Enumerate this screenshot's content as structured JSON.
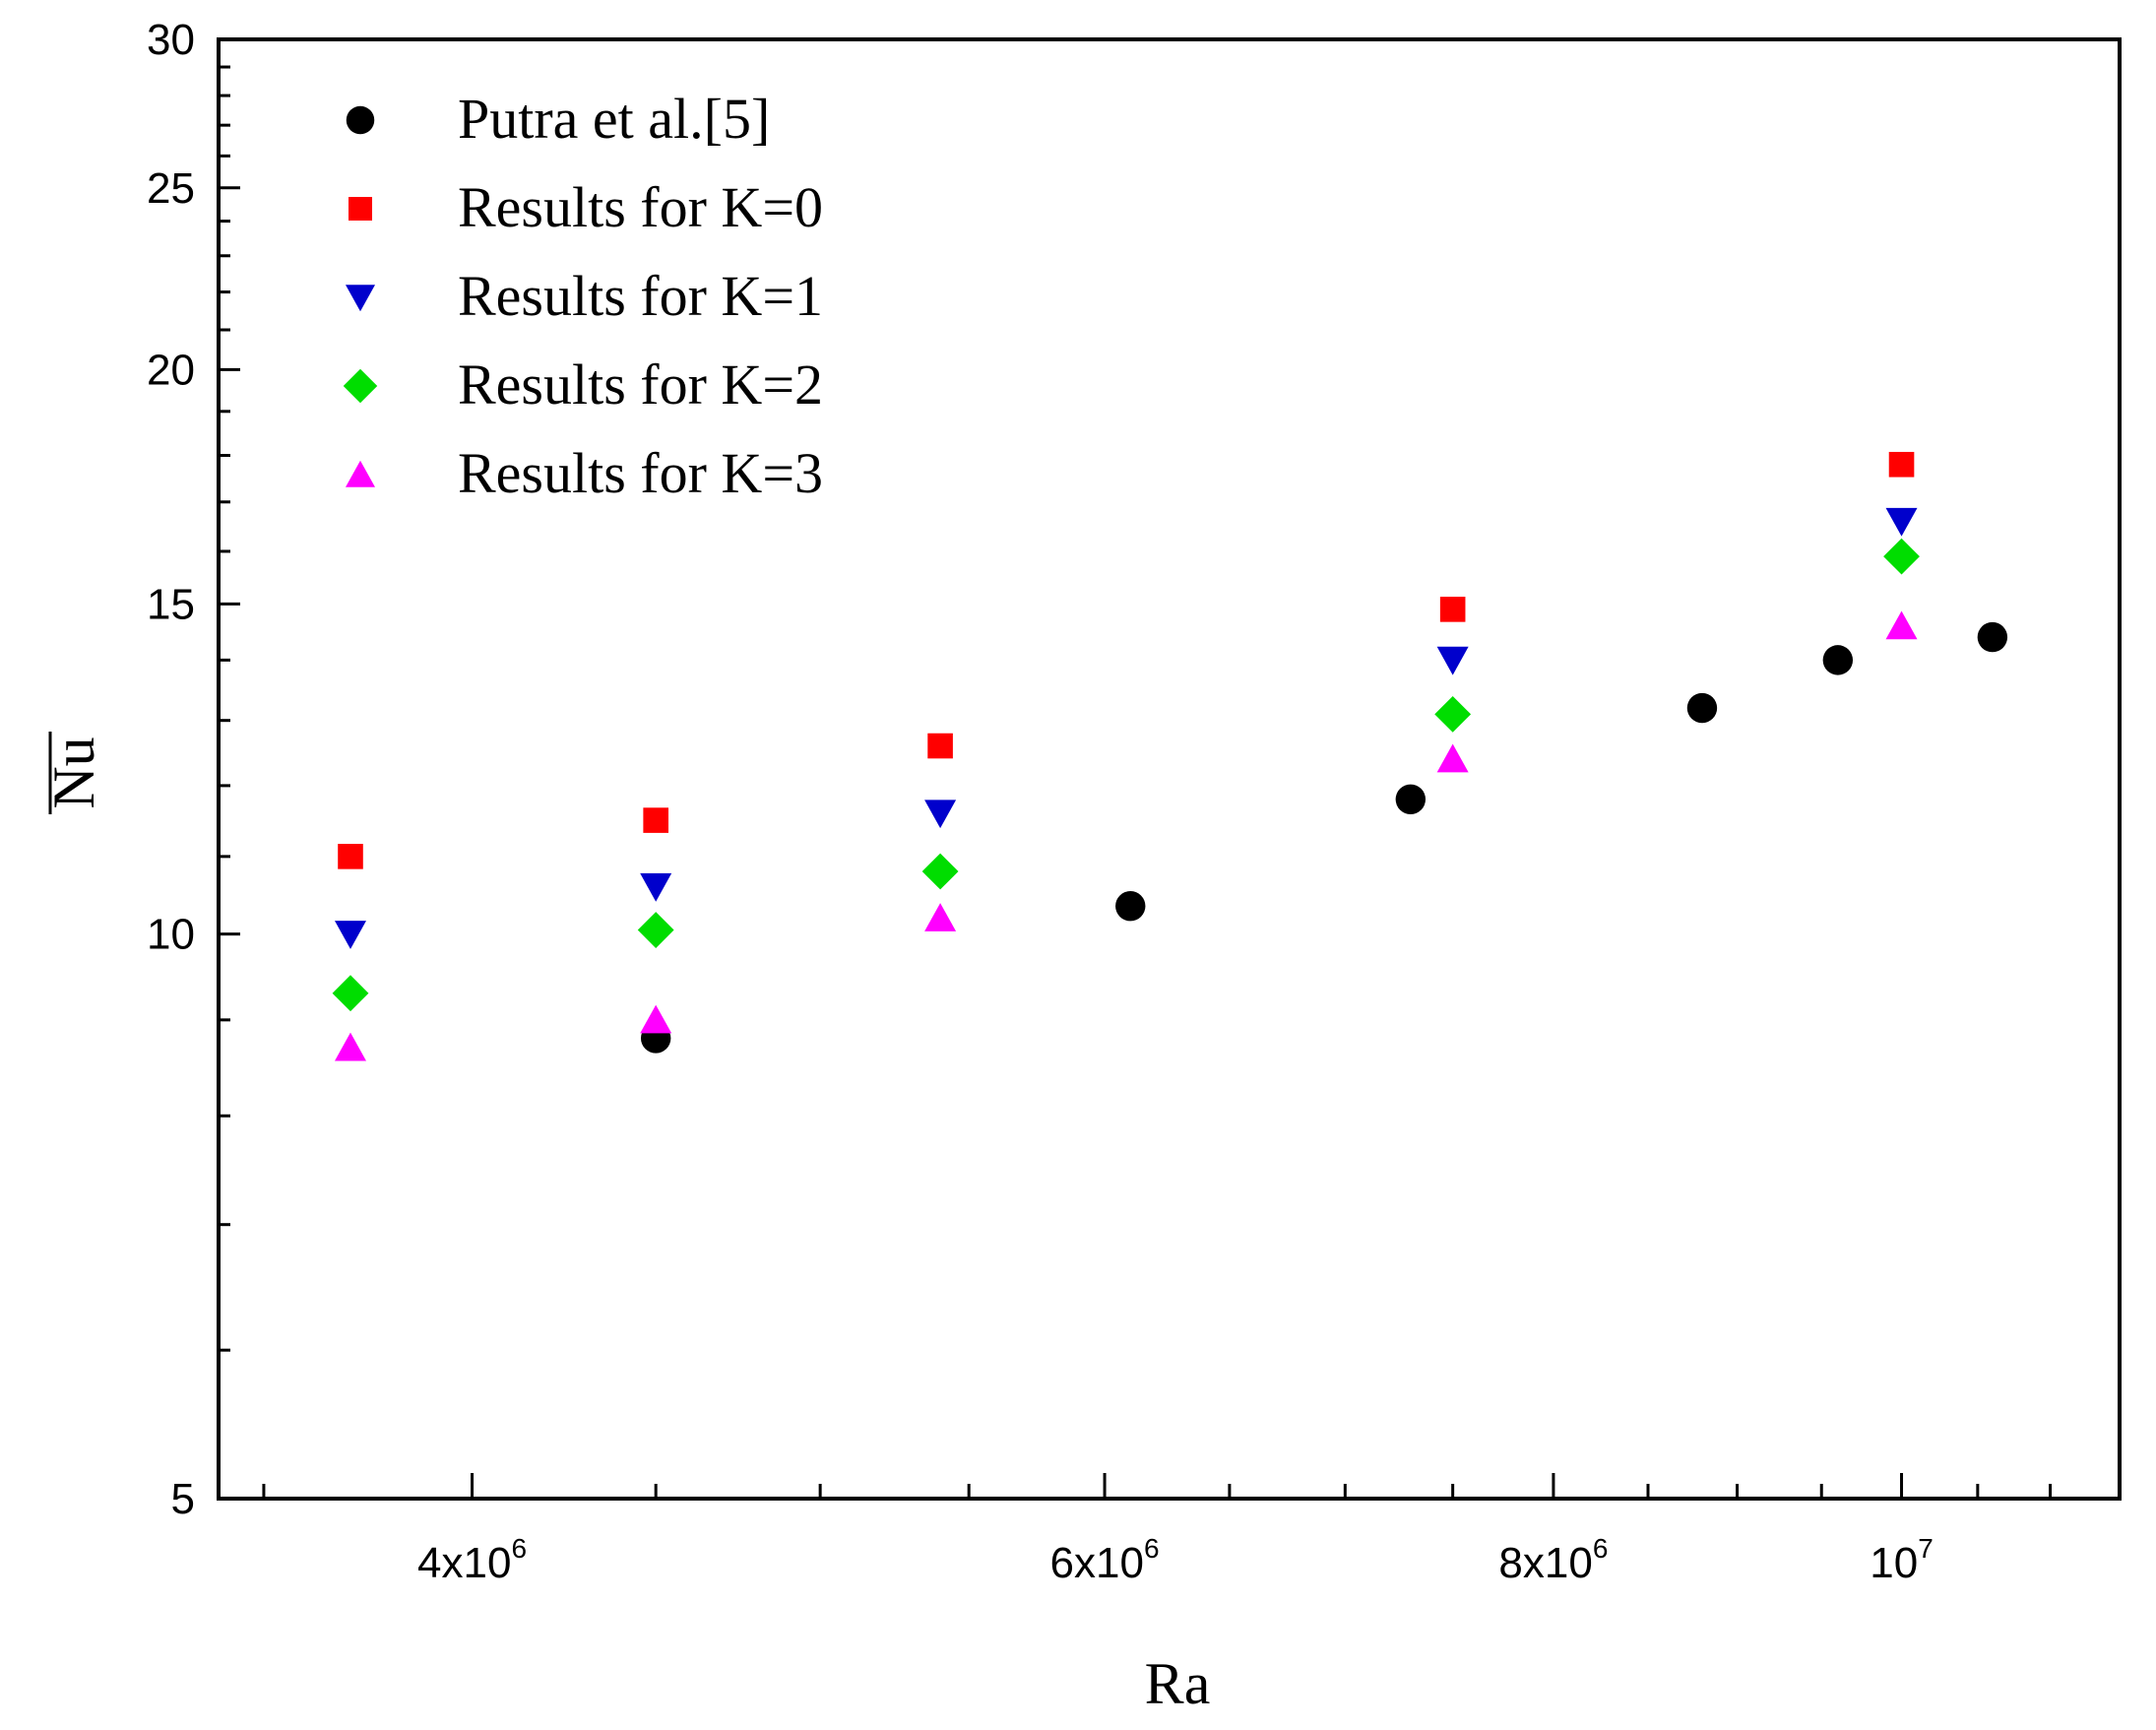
{
  "chart_data": {
    "type": "scatter",
    "title": "",
    "xlabel": "Ra",
    "ylabel": "Nu",
    "xscale": "log",
    "yscale": "log",
    "xlim": [
      3400000,
      11500000
    ],
    "ylim": [
      5,
      30
    ],
    "x_ticks": [
      {
        "value": 4000000,
        "mant": "4x10",
        "exp": "6"
      },
      {
        "value": 6000000,
        "mant": "6x10",
        "exp": "6"
      },
      {
        "value": 8000000,
        "mant": "8x10",
        "exp": "6"
      },
      {
        "value": 10000000,
        "mant": "10",
        "exp": "7"
      }
    ],
    "y_ticks": [
      {
        "value": 5,
        "label": "5"
      },
      {
        "value": 10,
        "label": "10"
      },
      {
        "value": 15,
        "label": "15"
      },
      {
        "value": 20,
        "label": "20"
      },
      {
        "value": 25,
        "label": "25"
      },
      {
        "value": 30,
        "label": "30"
      }
    ],
    "legend_position": "top-left",
    "series": [
      {
        "name": "Putra et al.[5]",
        "marker": "circle",
        "color": "#000000",
        "points": [
          {
            "x": 4500000,
            "y": 8.8
          },
          {
            "x": 6100000,
            "y": 10.35
          },
          {
            "x": 7300000,
            "y": 11.8
          },
          {
            "x": 8800000,
            "y": 13.2
          },
          {
            "x": 9600000,
            "y": 14.0
          },
          {
            "x": 10600000,
            "y": 14.4
          }
        ]
      },
      {
        "name": "Results for K=0",
        "marker": "square",
        "color": "#ff0000",
        "points": [
          {
            "x": 3700000,
            "y": 11.0
          },
          {
            "x": 4500000,
            "y": 11.5
          },
          {
            "x": 5400000,
            "y": 12.6
          },
          {
            "x": 7500000,
            "y": 14.9
          },
          {
            "x": 10000000,
            "y": 17.8
          }
        ]
      },
      {
        "name": "Results for K=1",
        "marker": "triangle-down",
        "color": "#0000cc",
        "points": [
          {
            "x": 3700000,
            "y": 10.0
          },
          {
            "x": 4500000,
            "y": 10.6
          },
          {
            "x": 5400000,
            "y": 11.6
          },
          {
            "x": 7500000,
            "y": 14.0
          },
          {
            "x": 10000000,
            "y": 16.6
          }
        ]
      },
      {
        "name": "Results for K=2",
        "marker": "diamond",
        "color": "#00dd00",
        "points": [
          {
            "x": 3700000,
            "y": 9.3
          },
          {
            "x": 4500000,
            "y": 10.05
          },
          {
            "x": 5400000,
            "y": 10.8
          },
          {
            "x": 7500000,
            "y": 13.1
          },
          {
            "x": 10000000,
            "y": 15.9
          }
        ]
      },
      {
        "name": "Results for K=3",
        "marker": "triangle-up",
        "color": "#ff00ff",
        "points": [
          {
            "x": 3700000,
            "y": 8.7
          },
          {
            "x": 4500000,
            "y": 9.0
          },
          {
            "x": 5400000,
            "y": 10.2
          },
          {
            "x": 7500000,
            "y": 12.4
          },
          {
            "x": 10000000,
            "y": 14.6
          }
        ]
      }
    ]
  }
}
